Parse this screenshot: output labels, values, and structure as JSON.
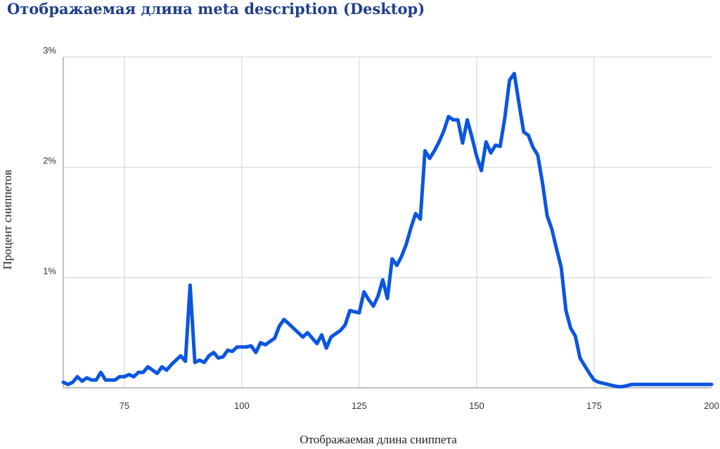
{
  "chart_data": {
    "type": "line",
    "title": "Отображаемая длина meta description (Desktop)",
    "xlabel": "Отображаемая длина сниппета",
    "ylabel": "Процент сниппетов",
    "xlim": [
      62,
      200
    ],
    "ylim": [
      0,
      3
    ],
    "x_ticks": [
      75,
      100,
      125,
      150,
      175,
      200
    ],
    "y_ticks": [
      1,
      2,
      3
    ],
    "y_tick_labels": [
      "1%",
      "2%",
      "3%"
    ],
    "grid": true,
    "line_color": "#0b56e0",
    "series": [
      {
        "x": [
          62,
          63,
          64,
          65,
          66,
          67,
          68,
          69,
          70,
          71,
          72,
          73,
          74,
          75,
          76,
          77,
          78,
          79,
          80,
          81,
          82,
          83,
          84,
          85,
          86,
          87,
          88,
          89,
          90,
          91,
          92,
          93,
          94,
          95,
          96,
          97,
          98,
          99,
          100,
          101,
          102,
          103,
          104,
          105,
          106,
          107,
          108,
          109,
          110,
          111,
          112,
          113,
          114,
          115,
          116,
          117,
          118,
          119,
          120,
          121,
          122,
          123,
          124,
          125,
          126,
          127,
          128,
          129,
          130,
          131,
          132,
          133,
          134,
          135,
          136,
          137,
          138,
          139,
          140,
          141,
          142,
          143,
          144,
          145,
          146,
          147,
          148,
          149,
          150,
          151,
          152,
          153,
          154,
          155,
          156,
          157,
          158,
          159,
          160,
          161,
          162,
          163,
          164,
          165,
          166,
          167,
          168,
          169,
          170,
          171,
          172,
          173,
          174,
          175,
          176,
          177,
          178,
          179,
          180,
          181,
          182,
          183,
          184,
          185,
          186,
          187,
          188,
          189,
          190,
          191,
          192,
          193,
          194,
          195,
          196,
          197,
          198,
          199,
          200
        ],
        "y": [
          0.05,
          0.03,
          0.05,
          0.1,
          0.06,
          0.09,
          0.07,
          0.07,
          0.14,
          0.07,
          0.07,
          0.07,
          0.1,
          0.1,
          0.12,
          0.1,
          0.14,
          0.14,
          0.19,
          0.16,
          0.13,
          0.19,
          0.16,
          0.21,
          0.25,
          0.29,
          0.24,
          0.93,
          0.23,
          0.25,
          0.23,
          0.29,
          0.32,
          0.27,
          0.28,
          0.34,
          0.33,
          0.37,
          0.37,
          0.37,
          0.38,
          0.32,
          0.41,
          0.39,
          0.42,
          0.45,
          0.56,
          0.62,
          0.58,
          0.54,
          0.5,
          0.46,
          0.5,
          0.45,
          0.4,
          0.48,
          0.36,
          0.46,
          0.49,
          0.52,
          0.57,
          0.7,
          0.69,
          0.68,
          0.87,
          0.8,
          0.74,
          0.83,
          0.98,
          0.81,
          1.17,
          1.11,
          1.19,
          1.3,
          1.45,
          1.58,
          1.53,
          2.15,
          2.08,
          2.15,
          2.23,
          2.33,
          2.46,
          2.43,
          2.43,
          2.22,
          2.43,
          2.27,
          2.1,
          1.97,
          2.23,
          2.13,
          2.2,
          2.19,
          2.45,
          2.79,
          2.85,
          2.58,
          2.32,
          2.29,
          2.18,
          2.11,
          1.86,
          1.56,
          1.44,
          1.26,
          1.09,
          0.7,
          0.54,
          0.47,
          0.27,
          0.2,
          0.13,
          0.07,
          0.05,
          0.04,
          0.03,
          0.02,
          0.01,
          0.01,
          0.02,
          0.03,
          0.03,
          0.03,
          0.03,
          0.03,
          0.03,
          0.03,
          0.03,
          0.03,
          0.03,
          0.03,
          0.03,
          0.03,
          0.03,
          0.03,
          0.03,
          0.03,
          0.03
        ]
      }
    ]
  }
}
